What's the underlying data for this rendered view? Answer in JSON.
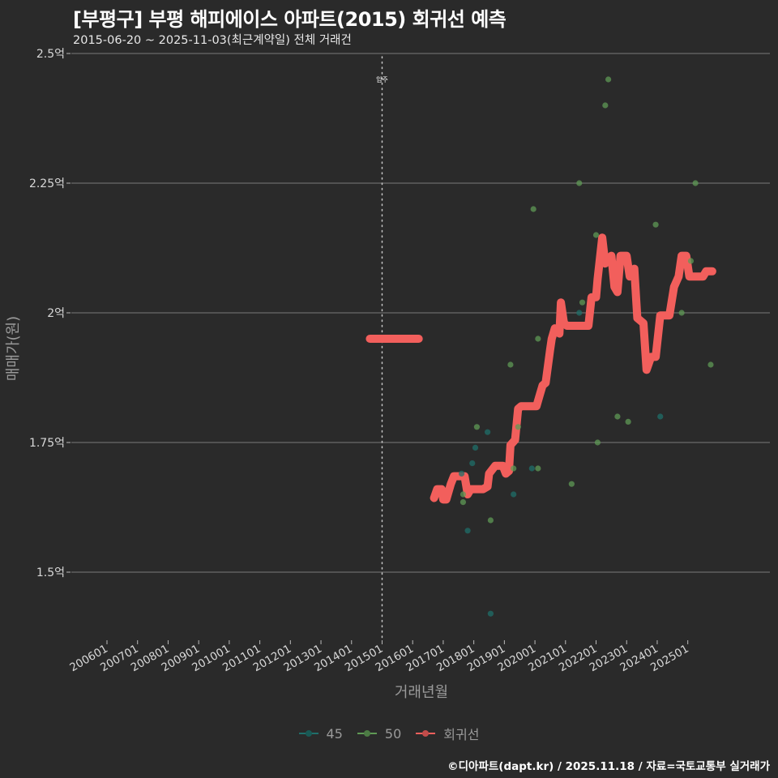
{
  "header": {
    "title": "[부평구] 부평 해피에이스 아파트(2015) 회귀선 예측",
    "subtitle": "2015-06-20 ~ 2025-11-03(최근계약일) 전체 거래건"
  },
  "caption": "©디아파트(dapt.kr) / 2025.11.18 / 자료=국토교통부 실거래가",
  "colors": {
    "background": "#2a2a2a",
    "grid": "#7a7a7a",
    "series_45": "#1f6f6a",
    "series_50": "#5f9a55",
    "regression": "#f25f5c"
  },
  "chart_data": {
    "type": "scatter",
    "title": "[부평구] 부평 해피에이스 아파트(2015) 회귀선 예측",
    "subtitle": "2015-06-20 ~ 2025-11-03(최근계약일) 전체 거래건",
    "xlabel": "거래년월",
    "ylabel": "매매가(원)",
    "x_ticks": [
      "200601",
      "200701",
      "200801",
      "200901",
      "201001",
      "201101",
      "201201",
      "201301",
      "201401",
      "201501",
      "201601",
      "201701",
      "201801",
      "201901",
      "202001",
      "202101",
      "202201",
      "202301",
      "202401",
      "202501"
    ],
    "y_ticks": [
      {
        "value": 2.5,
        "label": "2.5억"
      },
      {
        "value": 2.25,
        "label": "2.25억"
      },
      {
        "value": 2.0,
        "label": "2억"
      },
      {
        "value": 1.75,
        "label": "1.75억"
      },
      {
        "value": 1.5,
        "label": "1.5억"
      }
    ],
    "ylim": [
      1.37,
      2.54
    ],
    "xlim": [
      2005.0,
      2027.5
    ],
    "grid": "horizontal",
    "legend_position": "bottom",
    "annotation": {
      "label": "입주",
      "x": 2015.0
    },
    "legend": [
      {
        "name": "45",
        "color": "#1f6f6a"
      },
      {
        "name": "50",
        "color": "#5f9a55"
      },
      {
        "name": "회귀선",
        "color": "#f25f5c"
      }
    ],
    "series": [
      {
        "name": "45",
        "points": [
          [
            2017.8,
            1.58
          ],
          [
            2018.05,
            1.74
          ],
          [
            2017.95,
            1.71
          ],
          [
            2018.55,
            1.42
          ],
          [
            2019.3,
            1.65
          ],
          [
            2018.45,
            1.77
          ],
          [
            2019.9,
            1.7
          ],
          [
            2021.45,
            2.0
          ],
          [
            2024.1,
            1.8
          ],
          [
            2017.6,
            1.69
          ]
        ]
      },
      {
        "name": "50",
        "points": [
          [
            2017.65,
            1.635
          ],
          [
            2017.65,
            1.65
          ],
          [
            2018.1,
            1.78
          ],
          [
            2018.55,
            1.6
          ],
          [
            2019.3,
            1.7
          ],
          [
            2019.2,
            1.9
          ],
          [
            2019.45,
            1.78
          ],
          [
            2019.95,
            2.2
          ],
          [
            2020.1,
            1.95
          ],
          [
            2020.1,
            1.7
          ],
          [
            2021.2,
            1.67
          ],
          [
            2021.45,
            2.25
          ],
          [
            2021.55,
            2.02
          ],
          [
            2022.0,
            2.15
          ],
          [
            2022.05,
            1.75
          ],
          [
            2022.3,
            2.4
          ],
          [
            2022.4,
            2.45
          ],
          [
            2022.7,
            1.8
          ],
          [
            2023.05,
            1.79
          ],
          [
            2023.95,
            2.17
          ],
          [
            2024.8,
            2.0
          ],
          [
            2025.1,
            2.1
          ],
          [
            2025.25,
            2.25
          ],
          [
            2025.75,
            1.9
          ]
        ]
      },
      {
        "name": "회귀선",
        "segments": [
          [
            [
              2014.6,
              1.95
            ],
            [
              2016.2,
              1.95
            ]
          ],
          [
            [
              2016.7,
              1.643
            ],
            [
              2016.8,
              1.66
            ],
            [
              2016.95,
              1.66
            ],
            [
              2017.0,
              1.64
            ],
            [
              2017.1,
              1.64
            ],
            [
              2017.25,
              1.67
            ],
            [
              2017.35,
              1.685
            ],
            [
              2017.6,
              1.685
            ],
            [
              2017.7,
              1.685
            ],
            [
              2017.8,
              1.65
            ],
            [
              2017.9,
              1.66
            ],
            [
              2018.3,
              1.66
            ],
            [
              2018.45,
              1.665
            ],
            [
              2018.5,
              1.69
            ],
            [
              2018.7,
              1.705
            ],
            [
              2018.95,
              1.705
            ],
            [
              2019.05,
              1.69
            ],
            [
              2019.15,
              1.695
            ],
            [
              2019.2,
              1.745
            ],
            [
              2019.35,
              1.755
            ],
            [
              2019.45,
              1.815
            ],
            [
              2019.55,
              1.82
            ],
            [
              2019.85,
              1.82
            ],
            [
              2020.05,
              1.82
            ],
            [
              2020.15,
              1.84
            ],
            [
              2020.25,
              1.86
            ],
            [
              2020.35,
              1.865
            ],
            [
              2020.5,
              1.93
            ],
            [
              2020.55,
              1.95
            ],
            [
              2020.65,
              1.97
            ],
            [
              2020.8,
              1.96
            ],
            [
              2020.85,
              2.02
            ],
            [
              2020.95,
              1.98
            ],
            [
              2021.05,
              1.975
            ],
            [
              2021.45,
              1.975
            ],
            [
              2021.75,
              1.975
            ],
            [
              2021.85,
              2.03
            ],
            [
              2022.0,
              2.03
            ],
            [
              2022.05,
              2.065
            ],
            [
              2022.2,
              2.145
            ],
            [
              2022.3,
              2.095
            ],
            [
              2022.5,
              2.11
            ],
            [
              2022.6,
              2.05
            ],
            [
              2022.7,
              2.04
            ],
            [
              2022.8,
              2.11
            ],
            [
              2023.0,
              2.11
            ],
            [
              2023.1,
              2.07
            ],
            [
              2023.25,
              2.085
            ],
            [
              2023.35,
              1.99
            ],
            [
              2023.55,
              1.98
            ],
            [
              2023.65,
              1.89
            ],
            [
              2023.8,
              1.915
            ],
            [
              2023.95,
              1.915
            ],
            [
              2024.1,
              1.995
            ],
            [
              2024.4,
              1.995
            ],
            [
              2024.55,
              2.05
            ],
            [
              2024.7,
              2.07
            ],
            [
              2024.8,
              2.11
            ],
            [
              2024.95,
              2.11
            ],
            [
              2025.05,
              2.07
            ],
            [
              2025.5,
              2.07
            ],
            [
              2025.6,
              2.08
            ],
            [
              2025.8,
              2.08
            ]
          ]
        ]
      }
    ]
  }
}
